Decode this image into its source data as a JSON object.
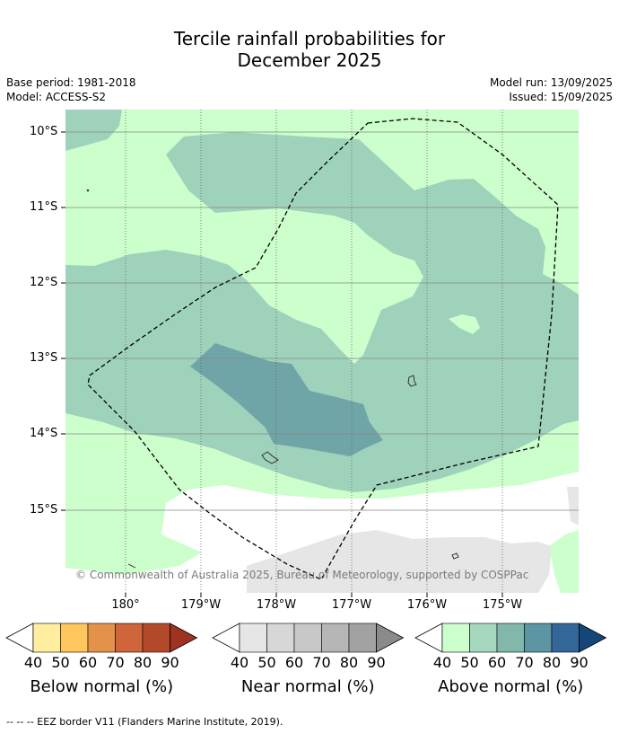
{
  "title_line1": "Tercile rainfall probabilities for",
  "title_line2": "December 2025",
  "base_period": "Base period: 1981-2018",
  "model": "Model: ACCESS-S2",
  "model_run": "Model run: 13/09/2025",
  "issued": "Issued: 15/09/2025",
  "lat_labels": [
    "10°S",
    "11°S",
    "12°S",
    "13°S",
    "14°S",
    "15°S"
  ],
  "lon_labels": [
    "180°",
    "179°W",
    "178°W",
    "177°W",
    "176°W",
    "175°W"
  ],
  "credit": "© Commonwealth of Australia 2025, Bureau of Meteorology, supported by COSPPac",
  "legends": [
    {
      "title": "Below normal (%)",
      "ticks": [
        "40",
        "50",
        "60",
        "70",
        "80",
        "90"
      ],
      "colors": [
        "#ffeda0",
        "#fec65c",
        "#e4924a",
        "#d0643a",
        "#b24a2a",
        "#9e3420"
      ]
    },
    {
      "title": "Near normal (%)",
      "ticks": [
        "40",
        "50",
        "60",
        "70",
        "80",
        "90"
      ],
      "colors": [
        "#e6e6e6",
        "#d7d7d7",
        "#c8c8c8",
        "#b6b6b6",
        "#a2a2a2",
        "#8a8a8a"
      ]
    },
    {
      "title": "Above normal (%)",
      "ticks": [
        "40",
        "50",
        "60",
        "70",
        "80",
        "90"
      ],
      "colors": [
        "#ccffcc",
        "#a6d8bf",
        "#82b8ac",
        "#5c96a3",
        "#33679a",
        "#14467a"
      ]
    }
  ],
  "footer": "--  --  -- EEZ border V11 (Flanders Marine Institute, 2019)."
}
